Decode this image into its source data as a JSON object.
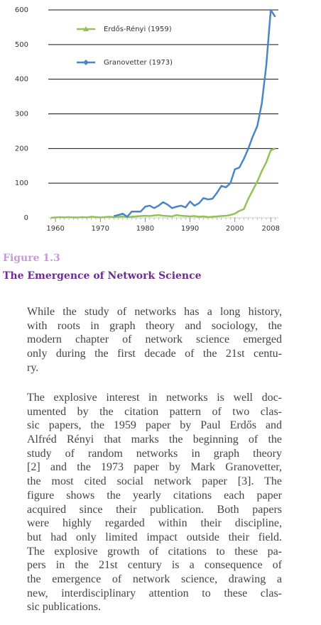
{
  "chart_data": {
    "type": "line",
    "x": [
      1959,
      1960,
      1961,
      1962,
      1963,
      1964,
      1965,
      1966,
      1967,
      1968,
      1969,
      1970,
      1971,
      1972,
      1973,
      1974,
      1975,
      1976,
      1977,
      1978,
      1979,
      1980,
      1981,
      1982,
      1983,
      1984,
      1985,
      1986,
      1987,
      1988,
      1989,
      1990,
      1991,
      1992,
      1993,
      1994,
      1995,
      1996,
      1997,
      1998,
      1999,
      2000,
      2001,
      2002,
      2003,
      2004,
      2005,
      2006,
      2007,
      2008,
      2009
    ],
    "series": [
      {
        "name": "Erdős-Rényi (1959)",
        "color": "#92c353",
        "marker": "triangle",
        "values": [
          0,
          1,
          2,
          1,
          2,
          1,
          1,
          2,
          1,
          3,
          2,
          1,
          2,
          3,
          2,
          3,
          4,
          2,
          3,
          4,
          5,
          6,
          5,
          7,
          8,
          6,
          5,
          4,
          8,
          6,
          5,
          4,
          5,
          3,
          4,
          2,
          3,
          4,
          5,
          6,
          8,
          12,
          20,
          25,
          55,
          80,
          105,
          135,
          160,
          195,
          200
        ]
      },
      {
        "name": "Granovetter (1973)",
        "color": "#4a86c6",
        "marker": "diamond",
        "values": [
          null,
          null,
          null,
          null,
          null,
          null,
          null,
          null,
          null,
          null,
          null,
          null,
          null,
          null,
          5,
          8,
          12,
          3,
          18,
          18,
          18,
          32,
          35,
          28,
          35,
          45,
          38,
          28,
          32,
          35,
          30,
          47,
          35,
          42,
          57,
          53,
          55,
          72,
          92,
          88,
          100,
          140,
          145,
          170,
          200,
          235,
          265,
          330,
          440,
          600,
          580
        ]
      }
    ],
    "xlim": [
      1958.4,
      2009.7
    ],
    "xticks": [
      1960,
      1970,
      1980,
      1990,
      2000,
      2008
    ],
    "ylim": [
      0,
      600
    ],
    "yticks": [
      0,
      100,
      200,
      300,
      400,
      500,
      600
    ],
    "grid": true,
    "legend": "upper left"
  },
  "figure": {
    "label": "Figure 1.3",
    "title": "The Emergence of Network Science"
  },
  "paragraphs": [
    [
      "While the study of networks has a long history,",
      "with roots in graph theory and sociology, the",
      "modern chapter of network science emerged",
      "only during the first decade of the 21st centu-",
      "ry."
    ],
    [
      "The explosive interest in networks is well doc-",
      "umented by the citation pattern of two clas-",
      "sic papers, the 1959 paper by Paul Erdős and",
      "Alfréd Rényi that marks the beginning of the",
      "study of random networks in graph theory",
      "[2] and the 1973 paper by Mark Granovetter,",
      "the most cited social network paper [3]. The",
      "figure shows the yearly citations each paper",
      "acquired since their publication. Both papers",
      "were highly regarded within their discipline,",
      "but had only limited impact outside their field.",
      " The explosive growth of citations to these pa-",
      "pers in the 21st century is a consequence of",
      "the emergence of network science, drawing a",
      "new, interdisciplinary attention to these clas-",
      "sic publications."
    ]
  ]
}
